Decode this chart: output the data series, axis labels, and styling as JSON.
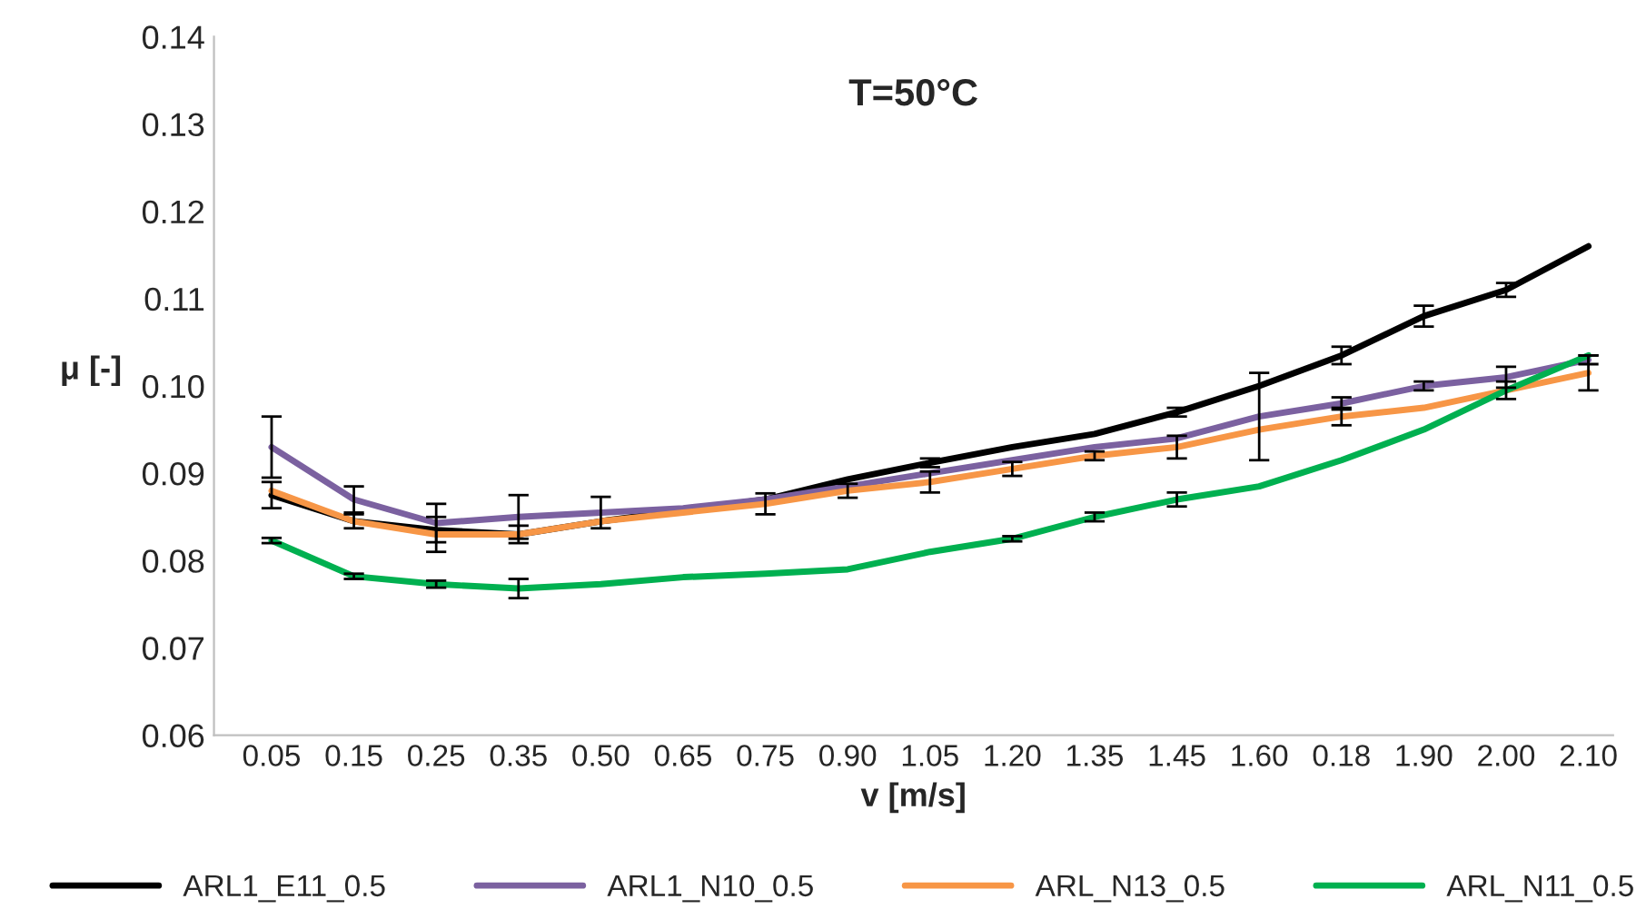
{
  "chart_data": {
    "type": "line",
    "title": "T=50°C",
    "xlabel": "v [m/s]",
    "ylabel": "μ [-]",
    "categories": [
      "0.05",
      "0.15",
      "0.25",
      "0.35",
      "0.50",
      "0.65",
      "0.75",
      "0.90",
      "1.05",
      "1.20",
      "1.35",
      "1.45",
      "1.60",
      "0.18",
      "1.90",
      "2.00",
      "2.10"
    ],
    "ylim": [
      0.06,
      0.14
    ],
    "yticks": [
      {
        "value": 0.06,
        "label": "0.06"
      },
      {
        "value": 0.07,
        "label": "0.07"
      },
      {
        "value": 0.08,
        "label": "0.08"
      },
      {
        "value": 0.09,
        "label": "0.09"
      },
      {
        "value": 0.1,
        "label": "0.10"
      },
      {
        "value": 0.11,
        "label": "0.11"
      },
      {
        "value": 0.12,
        "label": "0.12"
      },
      {
        "value": 0.13,
        "label": "0.13"
      },
      {
        "value": 0.14,
        "label": "0.14"
      }
    ],
    "grid": false,
    "legend": "bottom",
    "marker": "none",
    "line_style": "solid",
    "series": [
      {
        "name": "ARL1_E11_0.5",
        "color": "#000000",
        "values": [
          0.0875,
          0.0845,
          0.0835,
          0.083,
          0.0845,
          null,
          0.087,
          0.0893,
          0.0912,
          0.093,
          0.0945,
          0.097,
          0.1,
          0.1035,
          0.108,
          0.111,
          0.116
        ],
        "errors": [
          0.0015,
          null,
          null,
          null,
          null,
          null,
          null,
          null,
          0.0005,
          null,
          null,
          0.0005,
          null,
          0.001,
          0.0012,
          0.0008,
          null
        ]
      },
      {
        "name": "ARL1_N10_0.5",
        "color": "#7b61a0",
        "values": [
          0.093,
          0.087,
          0.0843,
          0.085,
          0.0855,
          0.086,
          0.087,
          0.0885,
          0.09,
          0.0915,
          0.093,
          0.094,
          0.0965,
          0.098,
          0.1,
          0.101,
          0.103
        ],
        "errors": [
          0.0035,
          0.0015,
          0.0022,
          0.0025,
          0.0018,
          null,
          null,
          null,
          null,
          null,
          null,
          null,
          0.005,
          0.0007,
          0.0005,
          0.0012,
          0.0005
        ]
      },
      {
        "name": "ARL_N13_0.5",
        "color": "#f79646",
        "values": [
          0.088,
          0.0845,
          0.083,
          0.083,
          0.0845,
          0.0855,
          0.0865,
          0.088,
          0.089,
          0.0905,
          0.092,
          0.093,
          0.095,
          0.0965,
          0.0975,
          0.0995,
          0.1015
        ],
        "errors": [
          null,
          0.0008,
          0.002,
          0.001,
          null,
          null,
          0.0012,
          0.0008,
          0.0012,
          0.0008,
          0.0005,
          0.0013,
          null,
          0.001,
          null,
          0.001,
          0.002
        ]
      },
      {
        "name": "ARL_N11_0.5",
        "color": "#00b050",
        "values": [
          0.0823,
          0.0782,
          0.0773,
          0.0768,
          0.0773,
          0.0781,
          0.0785,
          0.079,
          0.081,
          0.0825,
          0.085,
          0.087,
          0.0885,
          0.0915,
          0.095,
          0.0995,
          0.1035
        ],
        "errors": [
          0.0003,
          0.0003,
          0.0004,
          0.0011,
          null,
          null,
          null,
          null,
          null,
          0.0003,
          0.0005,
          0.0008,
          null,
          null,
          null,
          null,
          null
        ]
      }
    ]
  }
}
